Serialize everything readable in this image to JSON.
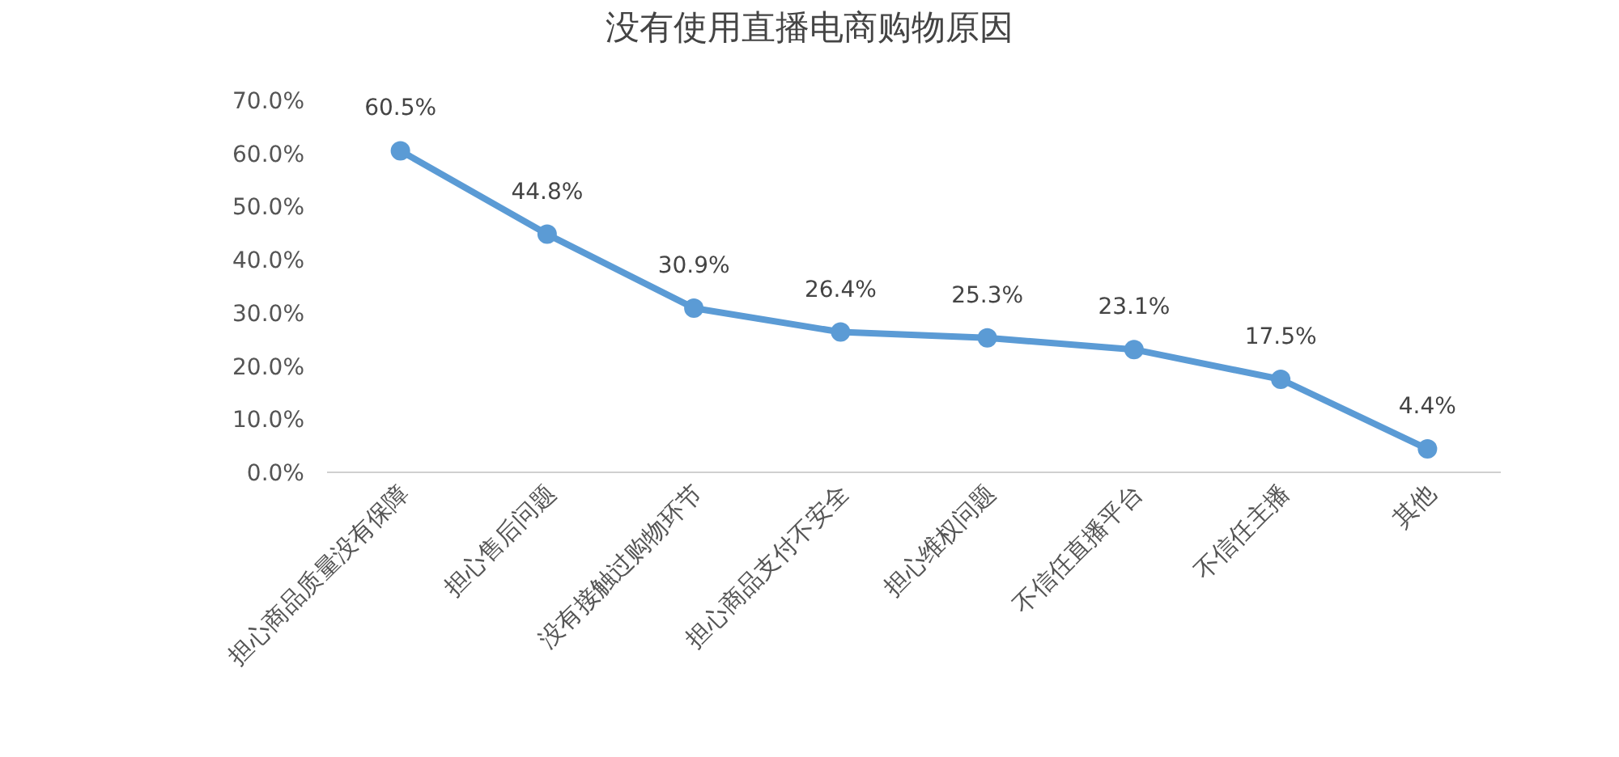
{
  "chart_data": {
    "type": "line",
    "title": "没有使用直播电商购物原因",
    "categories": [
      "担心商品质量没有保障",
      "担心售后问题",
      "没有接触过购物环节",
      "担心商品支付不安全",
      "担心维权问题",
      "不信任直播平台",
      "不信任主播",
      "其他"
    ],
    "values": [
      60.5,
      44.8,
      30.9,
      26.4,
      25.3,
      23.1,
      17.5,
      4.4
    ],
    "value_labels": [
      "60.5%",
      "44.8%",
      "30.9%",
      "26.4%",
      "25.3%",
      "23.1%",
      "17.5%",
      "4.4%"
    ],
    "color": "#5b9bd5",
    "marker": "circle",
    "ylim": [
      0,
      70
    ],
    "yticks": [
      {
        "value": 0,
        "label": "0.0%"
      },
      {
        "value": 10,
        "label": "10.0%"
      },
      {
        "value": 20,
        "label": "20.0%"
      },
      {
        "value": 30,
        "label": "30.0%"
      },
      {
        "value": 40,
        "label": "40.0%"
      },
      {
        "value": 50,
        "label": "50.0%"
      },
      {
        "value": 60,
        "label": "60.0%"
      },
      {
        "value": 70,
        "label": "70.0%"
      }
    ]
  }
}
